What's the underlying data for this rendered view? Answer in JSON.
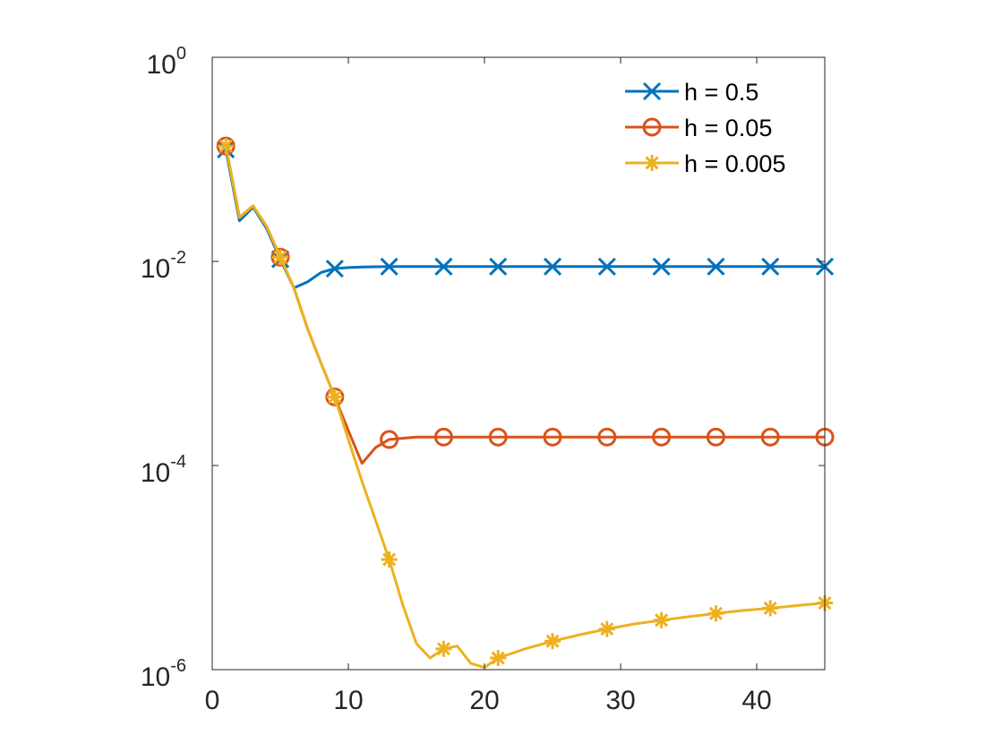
{
  "chart_data": {
    "type": "line",
    "title": "",
    "xlabel": "",
    "ylabel": "",
    "xlim": [
      0,
      45
    ],
    "ylim": [
      1e-06,
      1
    ],
    "yscale": "log",
    "grid": false,
    "legend_position": "top-right",
    "x_ticks": [
      {
        "value": 0,
        "label": "0"
      },
      {
        "value": 10,
        "label": "10"
      },
      {
        "value": 20,
        "label": "20"
      },
      {
        "value": 30,
        "label": "30"
      },
      {
        "value": 40,
        "label": "40"
      }
    ],
    "y_ticks": [
      {
        "value": 1,
        "base": "10",
        "exponent": "0"
      },
      {
        "value": 0.01,
        "base": "10",
        "exponent": "-2"
      },
      {
        "value": 0.0001,
        "base": "10",
        "exponent": "-4"
      },
      {
        "value": 1e-06,
        "base": "10",
        "exponent": "-6"
      }
    ],
    "series": [
      {
        "name": "h = 0.5",
        "color": "#0072BD",
        "marker": "x",
        "x": [
          1,
          2,
          3,
          4,
          5,
          6,
          7,
          8,
          9,
          10,
          11,
          13,
          15,
          17,
          19,
          21,
          23,
          25,
          27,
          29,
          31,
          33,
          35,
          37,
          39,
          41,
          43,
          45
        ],
        "y": [
          0.125,
          0.025,
          0.034,
          0.021,
          0.0105,
          0.0055,
          0.0063,
          0.0078,
          0.0085,
          0.0087,
          0.0088,
          0.0089,
          0.0089,
          0.0089,
          0.0089,
          0.0089,
          0.0089,
          0.0089,
          0.0089,
          0.0089,
          0.0089,
          0.0089,
          0.0089,
          0.0089,
          0.0089,
          0.0089,
          0.0089,
          0.0089
        ],
        "markers_x": [
          1,
          5,
          9,
          13,
          17,
          21,
          25,
          29,
          33,
          37,
          41,
          45
        ],
        "markers_y": [
          0.125,
          0.0105,
          0.0085,
          0.0089,
          0.0089,
          0.0089,
          0.0089,
          0.0089,
          0.0089,
          0.0089,
          0.0089,
          0.0089
        ]
      },
      {
        "name": "h = 0.05",
        "color": "#D95319",
        "marker": "o",
        "x": [
          1,
          2,
          3,
          4,
          5,
          6,
          7,
          8,
          9,
          10,
          11,
          12,
          13,
          15,
          17,
          21,
          25,
          29,
          33,
          37,
          41,
          45
        ],
        "y": [
          0.135,
          0.027,
          0.035,
          0.022,
          0.011,
          0.0055,
          0.0022,
          0.001,
          0.00047,
          0.00022,
          0.000105,
          0.00015,
          0.00018,
          0.00019,
          0.00019,
          0.00019,
          0.00019,
          0.00019,
          0.00019,
          0.00019,
          0.00019,
          0.00019
        ],
        "markers_x": [
          1,
          5,
          9,
          13,
          17,
          21,
          25,
          29,
          33,
          37,
          41,
          45
        ],
        "markers_y": [
          0.135,
          0.011,
          0.00047,
          0.00018,
          0.00019,
          0.00019,
          0.00019,
          0.00019,
          0.00019,
          0.00019,
          0.00019,
          0.00019
        ]
      },
      {
        "name": "h = 0.005",
        "color": "#EDB120",
        "marker": "*",
        "x": [
          1,
          2,
          3,
          4,
          5,
          6,
          7,
          8,
          9,
          10,
          11,
          12,
          13,
          14,
          15,
          16,
          17,
          18,
          19,
          20,
          21,
          23,
          25,
          27,
          29,
          31,
          33,
          35,
          37,
          39,
          41,
          43,
          45
        ],
        "y": [
          0.135,
          0.027,
          0.035,
          0.022,
          0.011,
          0.0055,
          0.0022,
          0.001,
          0.00047,
          0.00018,
          7e-05,
          2.9e-05,
          1.2e-05,
          4.3e-06,
          1.8e-06,
          1.3e-06,
          1.6e-06,
          1.7e-06,
          1.15e-06,
          1.05e-06,
          1.3e-06,
          1.6e-06,
          1.9e-06,
          2.2e-06,
          2.5e-06,
          2.8e-06,
          3.05e-06,
          3.3e-06,
          3.55e-06,
          3.8e-06,
          4e-06,
          4.25e-06,
          4.5e-06
        ],
        "markers_x": [
          1,
          5,
          9,
          13,
          17,
          21,
          25,
          29,
          33,
          37,
          41,
          45
        ],
        "markers_y": [
          0.135,
          0.011,
          0.00047,
          1.2e-05,
          1.6e-06,
          1.3e-06,
          1.9e-06,
          2.5e-06,
          3.05e-06,
          3.55e-06,
          4e-06,
          4.5e-06
        ]
      }
    ]
  }
}
